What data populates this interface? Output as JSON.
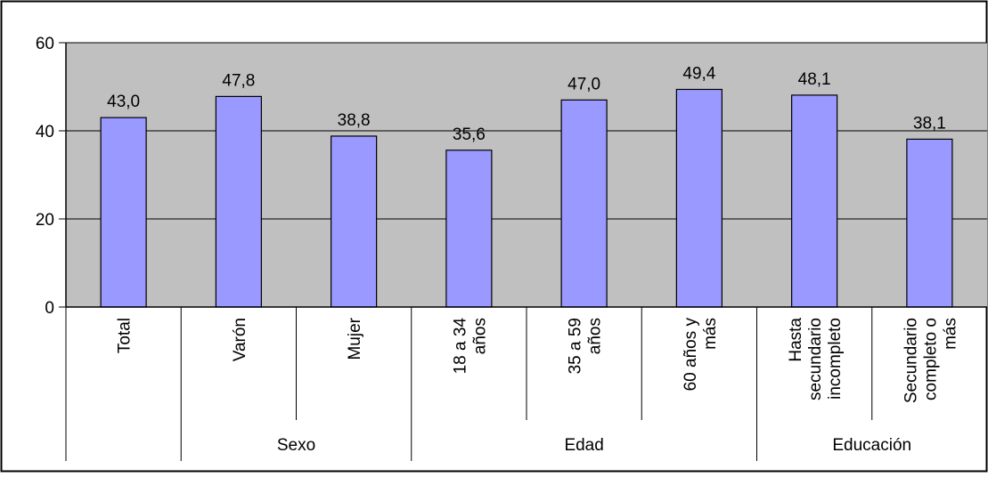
{
  "colors": {
    "plot_background": "#C0C0C0",
    "bar_fill": "#9999FF",
    "bar_stroke": "#000000",
    "gridline": "#000000",
    "frame": "#000000"
  },
  "chart_data": {
    "type": "bar",
    "title": "",
    "xlabel": "",
    "ylabel": "",
    "ylim": [
      0,
      60
    ],
    "yticks": [
      0,
      20,
      40,
      60
    ],
    "ytick_labels": [
      "0",
      "20",
      "40",
      "60"
    ],
    "grid": true,
    "legend": "none",
    "categories": [
      [
        "Total"
      ],
      [
        "Varón"
      ],
      [
        "Mujer"
      ],
      [
        "18 a 34",
        "años"
      ],
      [
        "35 a 59",
        "años"
      ],
      [
        "60 años y",
        "más"
      ],
      [
        "Hasta",
        "secundario",
        "incompleto"
      ],
      [
        "Secundario",
        "completo o",
        "más"
      ]
    ],
    "values": [
      43.0,
      47.8,
      38.8,
      35.6,
      47.0,
      49.4,
      48.1,
      38.1
    ],
    "value_labels": [
      "43,0",
      "47,8",
      "38,8",
      "35,6",
      "47,0",
      "49,4",
      "48,1",
      "38,1"
    ],
    "groups": [
      {
        "label": "",
        "start": 0,
        "end": 0
      },
      {
        "label": "Sexo",
        "start": 1,
        "end": 2
      },
      {
        "label": "Edad",
        "start": 3,
        "end": 5
      },
      {
        "label": "Educación",
        "start": 6,
        "end": 7
      }
    ]
  }
}
